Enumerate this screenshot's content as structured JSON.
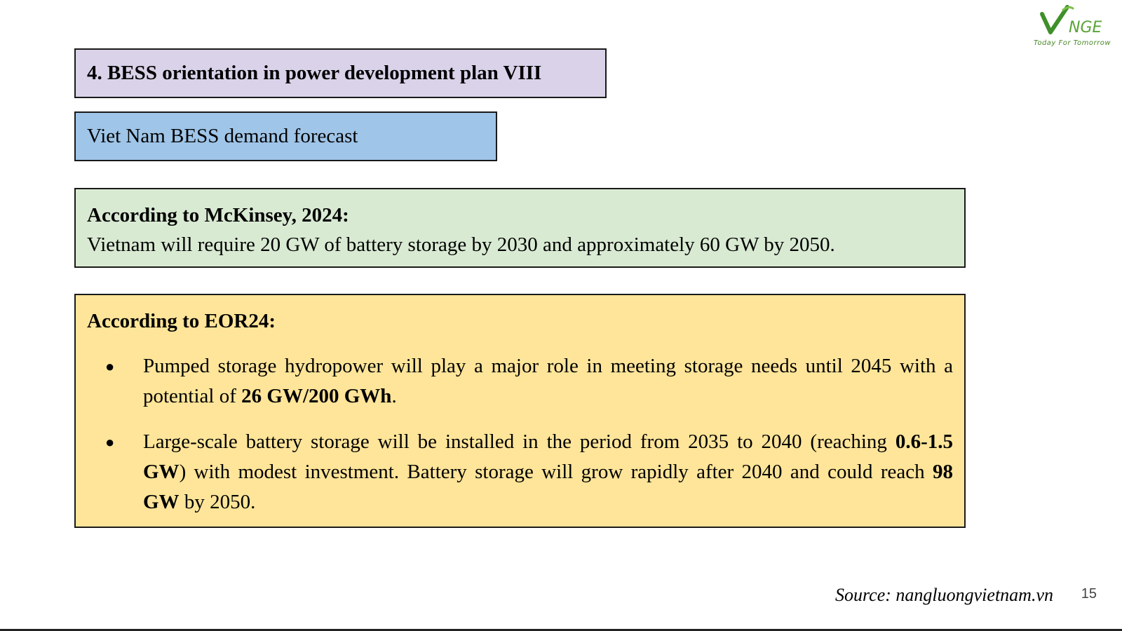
{
  "logo": {
    "name": "VNGE",
    "tagline": "Today For Tomorrow",
    "colors": {
      "v": "#3f8f2a",
      "text": "#6aaa3a"
    }
  },
  "title": "4. BESS orientation in power development plan VIII",
  "subtitle": "Viet Nam BESS demand forecast",
  "mckinsey": {
    "heading": "According to McKinsey, 2024:",
    "text": "Vietnam will require 20 GW of battery storage by 2030 and approximately 60 GW by 2050."
  },
  "eor": {
    "heading": "According to EOR24:",
    "bullet_symbol": "●",
    "bullets": [
      {
        "before": "Pumped storage hydropower will play a major role in meeting storage needs until 2045 with a potential of ",
        "bold": "26 GW/200 GWh",
        "after": "."
      },
      {
        "before": "Large-scale battery storage will be installed in the period from 2035 to 2040 (reaching ",
        "bold": "0.6-1.5 GW",
        "middle": ") with modest investment. Battery storage will grow rapidly after 2040 and could reach ",
        "bold2": "98 GW",
        "after": " by 2050."
      }
    ]
  },
  "source": "Source: nangluongvietnam.vn",
  "page_number": "15",
  "colors": {
    "title_bg": "#d9d2e9",
    "subtitle_bg": "#9fc5e8",
    "mckinsey_bg": "#d9ead3",
    "eor_bg": "#ffe599"
  }
}
